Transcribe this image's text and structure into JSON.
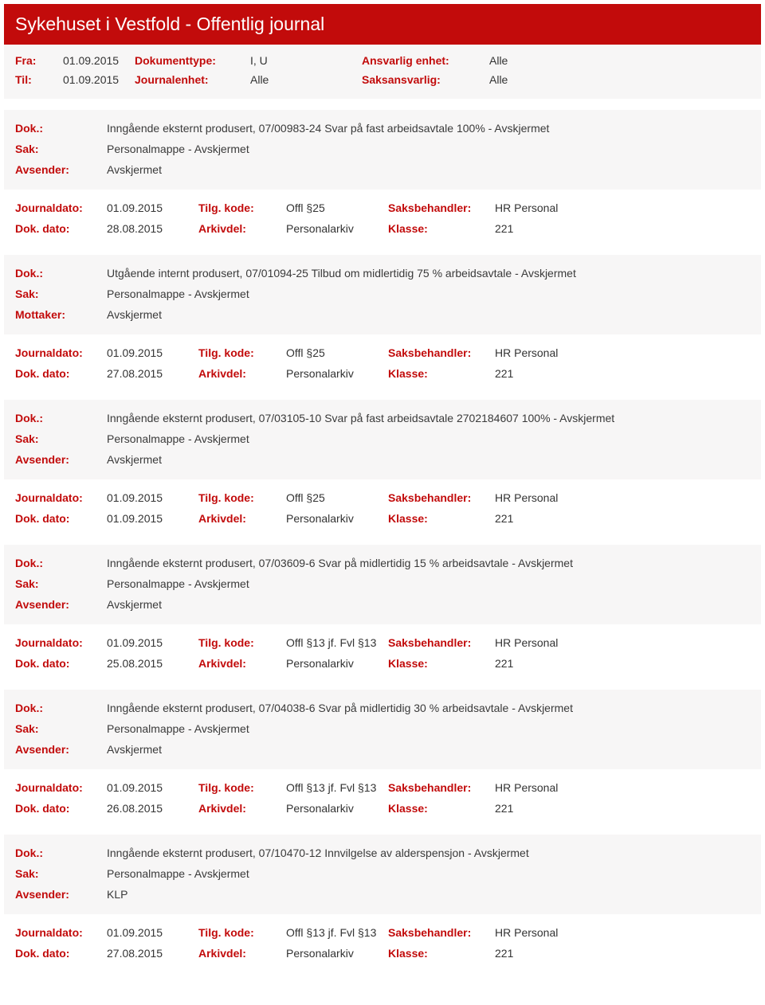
{
  "header": {
    "title": "Sykehuset i Vestfold - Offentlig journal",
    "fra_label": "Fra:",
    "fra": "01.09.2015",
    "til_label": "Til:",
    "til": "01.09.2015",
    "doktype_label": "Dokumenttype:",
    "doktype": "I, U",
    "journalenhet_label": "Journalenhet:",
    "journalenhet": "Alle",
    "ansvarlig_label": "Ansvarlig enhet:",
    "ansvarlig": "Alle",
    "saksansvarlig_label": "Saksansvarlig:",
    "saksansvarlig": "Alle"
  },
  "labels": {
    "dok": "Dok.:",
    "sak": "Sak:",
    "avsender": "Avsender:",
    "mottaker": "Mottaker:",
    "journaldato": "Journaldato:",
    "dokdato": "Dok. dato:",
    "tilgkode": "Tilg. kode:",
    "arkivdel": "Arkivdel:",
    "saksbehandler": "Saksbehandler:",
    "klasse": "Klasse:"
  },
  "entries": [
    {
      "dok": "Inngående eksternt produsert, 07/00983-24 Svar på fast arbeidsavtale 100% - Avskjermet",
      "sak": "Personalmappe - Avskjermet",
      "party_label": "Avsender:",
      "party": "Avskjermet",
      "journaldato": "01.09.2015",
      "tilgkode": "Offl §25",
      "saksbehandler": "HR Personal",
      "dokdato": "28.08.2015",
      "arkivdel": "Personalarkiv",
      "klasse": "221"
    },
    {
      "dok": "Utgående internt produsert, 07/01094-25 Tilbud om midlertidig 75 % arbeidsavtale - Avskjermet",
      "sak": "Personalmappe - Avskjermet",
      "party_label": "Mottaker:",
      "party": "Avskjermet",
      "journaldato": "01.09.2015",
      "tilgkode": "Offl §25",
      "saksbehandler": "HR Personal",
      "dokdato": "27.08.2015",
      "arkivdel": "Personalarkiv",
      "klasse": "221"
    },
    {
      "dok": "Inngående eksternt produsert, 07/03105-10 Svar på fast arbeidsavtale 2702184607 100% - Avskjermet",
      "sak": "Personalmappe - Avskjermet",
      "party_label": "Avsender:",
      "party": "Avskjermet",
      "journaldato": "01.09.2015",
      "tilgkode": "Offl §25",
      "saksbehandler": "HR Personal",
      "dokdato": "01.09.2015",
      "arkivdel": "Personalarkiv",
      "klasse": "221"
    },
    {
      "dok": "Inngående eksternt produsert, 07/03609-6 Svar på midlertidig 15 % arbeidsavtale - Avskjermet",
      "sak": "Personalmappe - Avskjermet",
      "party_label": "Avsender:",
      "party": "Avskjermet",
      "journaldato": "01.09.2015",
      "tilgkode": "Offl §13 jf. Fvl §13",
      "saksbehandler": "HR Personal",
      "dokdato": "25.08.2015",
      "arkivdel": "Personalarkiv",
      "klasse": "221"
    },
    {
      "dok": "Inngående eksternt produsert, 07/04038-6 Svar på midlertidig 30 % arbeidsavtale - Avskjermet",
      "sak": "Personalmappe - Avskjermet",
      "party_label": "Avsender:",
      "party": "Avskjermet",
      "journaldato": "01.09.2015",
      "tilgkode": "Offl §13 jf. Fvl §13",
      "saksbehandler": "HR Personal",
      "dokdato": "26.08.2015",
      "arkivdel": "Personalarkiv",
      "klasse": "221"
    },
    {
      "dok": "Inngående eksternt produsert, 07/10470-12 Innvilgelse av alderspensjon - Avskjermet",
      "sak": "Personalmappe - Avskjermet",
      "party_label": "Avsender:",
      "party": "KLP",
      "journaldato": "01.09.2015",
      "tilgkode": "Offl §13 jf. Fvl §13",
      "saksbehandler": "HR Personal",
      "dokdato": "27.08.2015",
      "arkivdel": "Personalarkiv",
      "klasse": "221"
    }
  ]
}
